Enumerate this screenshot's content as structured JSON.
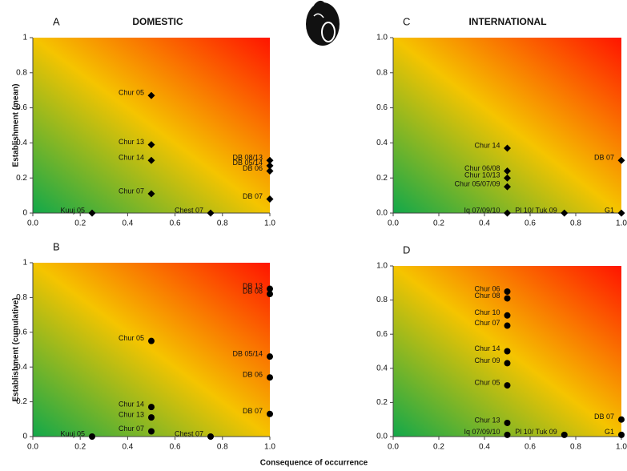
{
  "figure": {
    "xlabel": "Consequence of occurrence"
  },
  "chart_data": [
    {
      "type": "scatter",
      "panel": "A",
      "title": "DOMESTIC",
      "ylabel": "Establishment (mean)",
      "marker": "diamond",
      "color": "#000000",
      "xlim": [
        0,
        1
      ],
      "ylim": [
        0,
        1
      ],
      "xticks": [
        {
          "value": 0,
          "label": "0.0"
        },
        0.2,
        0.4,
        0.6,
        0.8,
        {
          "value": 1,
          "label": "1.0"
        }
      ],
      "yticks": [
        0,
        0.2,
        0.4,
        0.6,
        0.8,
        1
      ],
      "point_labels": [
        "Chur 05",
        "Chur 13",
        "Chur 14",
        "Chur 07",
        "Kuuj 05",
        "Chest 07",
        "DB 08/13",
        "DB 05/14",
        "DB 06",
        "DB 07"
      ],
      "x": [
        0.5,
        0.5,
        0.5,
        0.5,
        0.25,
        0.75,
        1,
        1,
        1,
        1
      ],
      "values": [
        0.67,
        0.39,
        0.3,
        0.11,
        0,
        0,
        0.3,
        0.27,
        0.24,
        0.08
      ]
    },
    {
      "type": "scatter",
      "panel": "C",
      "title": "INTERNATIONAL",
      "marker": "diamond",
      "color": "#000000",
      "xlim": [
        0,
        1
      ],
      "ylim": [
        0,
        1
      ],
      "xticks": [
        {
          "value": 0,
          "label": "0.0"
        },
        0.2,
        0.4,
        0.6,
        0.8,
        {
          "value": 1,
          "label": "1.0"
        }
      ],
      "yticks": [
        {
          "value": 0,
          "label": "0.0"
        },
        0.2,
        0.4,
        0.6,
        0.8,
        {
          "value": 1,
          "label": "1.0"
        }
      ],
      "point_labels": [
        "Chur 14",
        "Chur 06/08",
        "Chur 10/13",
        "Chur 05/07/09",
        "Iq 07/09/10",
        "Pl 10/ Tuk 09",
        "DB 07",
        "G1"
      ],
      "x": [
        0.5,
        0.5,
        0.5,
        0.5,
        0.5,
        0.75,
        1,
        1
      ],
      "values": [
        0.37,
        0.24,
        0.2,
        0.15,
        0,
        0,
        0.3,
        0
      ]
    },
    {
      "type": "scatter",
      "panel": "B",
      "ylabel": "Establishment (cumulative)",
      "marker": "circle",
      "color": "#000000",
      "xlim": [
        0,
        1
      ],
      "ylim": [
        0,
        1
      ],
      "xticks": [
        {
          "value": 0,
          "label": "0.0"
        },
        0.2,
        0.4,
        0.6,
        0.8,
        {
          "value": 1,
          "label": "1.0"
        }
      ],
      "yticks": [
        0,
        0.2,
        0.4,
        0.6,
        0.8,
        1
      ],
      "point_labels": [
        "DB 13",
        "DB 08",
        "Chur 05",
        "DB 05/14",
        "DB 06",
        "DB 07",
        "Chur 14",
        "Chur 13",
        "Chur 07",
        "Kuuj 05",
        "Chest 07"
      ],
      "x": [
        1,
        1,
        0.5,
        1,
        1,
        1,
        0.5,
        0.5,
        0.5,
        0.25,
        0.75
      ],
      "values": [
        0.85,
        0.82,
        0.55,
        0.46,
        0.34,
        0.13,
        0.17,
        0.11,
        0.03,
        0,
        0
      ]
    },
    {
      "type": "scatter",
      "panel": "D",
      "marker": "circle",
      "color": "#000000",
      "xlim": [
        0,
        1
      ],
      "ylim": [
        0,
        1
      ],
      "xticks": [
        {
          "value": 0,
          "label": "0.0"
        },
        0.2,
        0.4,
        0.6,
        0.8,
        {
          "value": 1,
          "label": "1.0"
        }
      ],
      "yticks": [
        {
          "value": 0,
          "label": "0.0"
        },
        0.2,
        0.4,
        0.6,
        0.8,
        {
          "value": 1,
          "label": "1.0"
        }
      ],
      "point_labels": [
        "Chur 06",
        "Chur 08",
        "Chur 10",
        "Chur 07",
        "Chur 14",
        "Chur 09",
        "Chur 05",
        "Chur 13",
        "Iq 07/09/10",
        "Pl 10/ Tuk 09",
        "DB 07",
        "G1"
      ],
      "x": [
        0.5,
        0.5,
        0.5,
        0.5,
        0.5,
        0.5,
        0.5,
        0.5,
        0.5,
        0.75,
        1,
        1
      ],
      "values": [
        0.85,
        0.81,
        0.71,
        0.65,
        0.5,
        0.43,
        0.3,
        0.08,
        0.01,
        0.01,
        0.1,
        0.01
      ]
    }
  ]
}
